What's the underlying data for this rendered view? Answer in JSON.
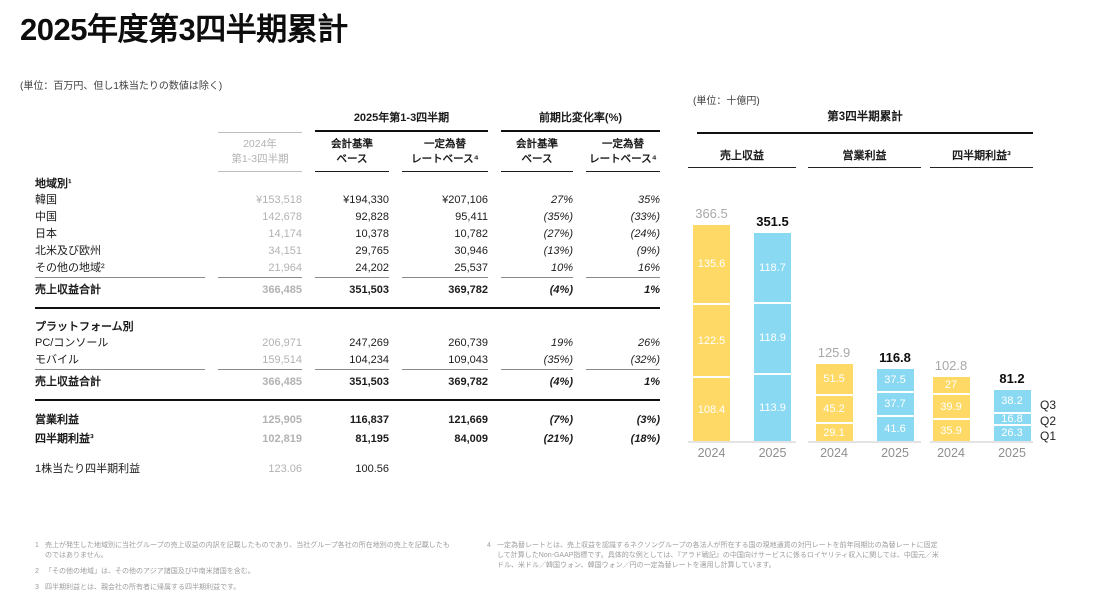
{
  "page": {
    "title": "2025年度第3四半期累計",
    "unit_note": "(単位：百万円、但し1株当たりの数値は除く)"
  },
  "table": {
    "prev_year_header": [
      "2024年",
      "第1-3四半期"
    ],
    "group_2025_header": "2025年第1-3四半期",
    "group_change_header": "前期比変化率(%)",
    "sub_accounting": [
      "会計基準",
      "ベース"
    ],
    "sub_constant_fx": [
      "一定為替",
      "レートベース⁴"
    ],
    "sections": [
      {
        "header": "地域別¹",
        "rows": [
          {
            "label": "韓国",
            "indent": true,
            "values": [
              "¥153,518",
              "¥194,330",
              "¥207,106",
              "27%",
              "35%"
            ]
          },
          {
            "label": "中国",
            "indent": true,
            "values": [
              "142,678",
              "92,828",
              "95,411",
              "(35%)",
              "(33%)"
            ]
          },
          {
            "label": "日本",
            "indent": true,
            "values": [
              "14,174",
              "10,378",
              "10,782",
              "(27%)",
              "(24%)"
            ]
          },
          {
            "label": "北米及び欧州",
            "indent": true,
            "values": [
              "34,151",
              "29,765",
              "30,946",
              "(13%)",
              "(9%)"
            ]
          },
          {
            "label": "その他の地域²",
            "indent": true,
            "values": [
              "21,964",
              "24,202",
              "25,537",
              "10%",
              "16%"
            ]
          }
        ],
        "total": {
          "label": "売上収益合計",
          "values": [
            "366,485",
            "351,503",
            "369,782",
            "(4%)",
            "1%"
          ]
        },
        "thick_after": true
      },
      {
        "header": "プラットフォーム別",
        "rows": [
          {
            "label": "PC/コンソール",
            "indent": true,
            "values": [
              "206,971",
              "247,269",
              "260,739",
              "19%",
              "26%"
            ]
          },
          {
            "label": "モバイル",
            "indent": true,
            "values": [
              "159,514",
              "104,234",
              "109,043",
              "(35%)",
              "(32%)"
            ]
          }
        ],
        "total": {
          "label": "売上収益合計",
          "values": [
            "366,485",
            "351,503",
            "369,782",
            "(4%)",
            "1%"
          ]
        },
        "thick_after": true
      },
      {
        "header": null,
        "rows": [
          {
            "label": "営業利益",
            "bold": true,
            "values": [
              "125,905",
              "116,837",
              "121,669",
              "(7%)",
              "(3%)"
            ]
          },
          {
            "label": "四半期利益³",
            "bold": true,
            "values": [
              "102,819",
              "81,195",
              "84,009",
              "(21%)",
              "(18%)"
            ]
          }
        ]
      },
      {
        "header": null,
        "rows": [
          {
            "label": "1株当たり四半期利益",
            "cls": "eps",
            "values": [
              "123.06",
              "100.56",
              "",
              "",
              ""
            ]
          }
        ]
      }
    ]
  },
  "chart_data": {
    "type": "bar",
    "stacked": true,
    "unit_note": "(単位：十億円)",
    "title": "第3四半期累計",
    "legend": [
      "Q3",
      "Q2",
      "Q1"
    ],
    "legend_position": "right",
    "segment_order_bottom_to_top": [
      "Q1",
      "Q2",
      "Q3"
    ],
    "colors": {
      "y2024": "#FFD966",
      "y2025": "#8AD9F3",
      "total_prev": "#A8A8A8",
      "total_cur": "#0D0D0D"
    },
    "groups": [
      {
        "label": "売上収益",
        "bars": [
          {
            "year": "2024",
            "total": 366.5,
            "q1": 108.4,
            "q2": 122.5,
            "q3": 135.6
          },
          {
            "year": "2025",
            "total": 351.5,
            "q1": 113.9,
            "q2": 118.9,
            "q3": 118.7
          }
        ]
      },
      {
        "label": "営業利益",
        "bars": [
          {
            "year": "2024",
            "total": 125.9,
            "q1": 29.1,
            "q2": 45.2,
            "q3": 51.5
          },
          {
            "year": "2025",
            "total": 116.8,
            "q1": 41.6,
            "q2": 37.7,
            "q3": 37.5
          }
        ]
      },
      {
        "label": "四半期利益³",
        "bars": [
          {
            "year": "2024",
            "total": 102.8,
            "q1": 35.9,
            "q2": 39.9,
            "q3": 27.0
          },
          {
            "year": "2025",
            "total": 81.2,
            "q1": 26.3,
            "q2": 16.8,
            "q3": 38.2
          }
        ]
      }
    ]
  },
  "footnotes": {
    "left": [
      {
        "num": "1",
        "text": "売上が発生した地域別に当社グループの売上収益の内訳を記載したものであり、当社グループ各社の所在地別の売上を記載したものではありません。"
      },
      {
        "num": "2",
        "text": "「その他の地域」は、その他のアジア諸国及び中南米諸国を含む。"
      },
      {
        "num": "3",
        "text": "四半期利益とは、親会社の所有者に帰属する四半期利益です。"
      }
    ],
    "right": [
      {
        "num": "4",
        "text": "一定為替レートとは、売上収益を認識するネクソングループの各法人が所在する国の現地通貨の対円レートを前年同期比の為替レートに固定して計算したNon-GAAP指標です。具体的な例としては、『アラド戦記』の中国向けサービスに係るロイヤリティ収入に関しては、中国元／米ドル、米ドル／韓国ウォン、韓国ウォン／円の一定為替レートを適用し計算しています。"
      }
    ]
  }
}
